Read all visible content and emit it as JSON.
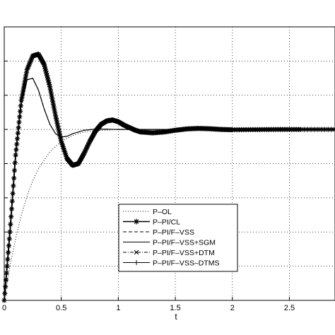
{
  "chart_data": {
    "type": "line",
    "title": "",
    "xlabel": "t",
    "ylabel": "",
    "xlim": [
      0,
      2.9
    ],
    "ylim": [
      0,
      1.6
    ],
    "grid": true,
    "legend_position": "bottom-center",
    "x_ticks": [
      0,
      0.5,
      1,
      1.5,
      2,
      2.5
    ],
    "x_tick_labels": [
      "0",
      "0.5",
      "1",
      "1.5",
      "2",
      "2.5"
    ],
    "y_ticks": [
      0,
      0.2,
      0.4,
      0.6,
      0.8,
      1.0,
      1.2,
      1.4
    ],
    "series": [
      {
        "name": "P–OL",
        "style": "dotted",
        "x": [
          0,
          0.05,
          0.1,
          0.15,
          0.2,
          0.25,
          0.3,
          0.4,
          0.5,
          0.6,
          0.7,
          0.8,
          1.0,
          1.5,
          2.0,
          2.9
        ],
        "y": [
          0,
          0.2,
          0.36,
          0.5,
          0.61,
          0.7,
          0.77,
          0.87,
          0.93,
          0.965,
          0.985,
          0.993,
          0.999,
          1.0,
          1.0,
          1.0
        ]
      },
      {
        "name": "P–PI/CL",
        "style": "solid-star",
        "x": [
          0,
          0.05,
          0.1,
          0.15,
          0.2,
          0.25,
          0.3,
          0.35,
          0.4,
          0.45,
          0.5,
          0.55,
          0.6,
          0.65,
          0.7,
          0.75,
          0.8,
          0.85,
          0.9,
          0.95,
          1.0,
          1.05,
          1.1,
          1.15,
          1.2,
          1.3,
          1.4,
          1.5,
          1.6,
          1.7,
          1.8,
          1.9,
          2.0,
          2.2,
          2.4,
          2.6,
          2.9
        ],
        "y": [
          0,
          0.4,
          0.85,
          1.17,
          1.35,
          1.43,
          1.44,
          1.38,
          1.25,
          1.08,
          0.93,
          0.83,
          0.79,
          0.8,
          0.86,
          0.93,
          0.99,
          1.03,
          1.05,
          1.055,
          1.045,
          1.025,
          1.01,
          0.995,
          0.985,
          0.98,
          0.985,
          0.995,
          1.003,
          1.006,
          1.004,
          1.0,
          0.998,
          0.999,
          1.0,
          1.0,
          1.0
        ]
      },
      {
        "name": "P–PI/F–VSS",
        "style": "dashed",
        "x": [
          0,
          0.05,
          0.1,
          0.15,
          0.2,
          0.25,
          0.3,
          0.35,
          0.4,
          0.45,
          0.5,
          0.55,
          0.6,
          0.7,
          0.8,
          1.0,
          1.5,
          2.0,
          2.9
        ],
        "y": [
          0,
          0.42,
          0.86,
          1.15,
          1.29,
          1.3,
          1.23,
          1.12,
          1.03,
          0.975,
          0.955,
          0.96,
          0.975,
          0.995,
          1.002,
          1.0,
          1.0,
          1.0,
          1.0
        ]
      },
      {
        "name": "P–PI/F–VSS+SGM",
        "style": "solid",
        "x": [
          0,
          0.05,
          0.1,
          0.15,
          0.2,
          0.25,
          0.3,
          0.35,
          0.4,
          0.45,
          0.5,
          0.55,
          0.6,
          0.7,
          0.8,
          1.0,
          1.5,
          2.0,
          2.9
        ],
        "y": [
          0,
          0.42,
          0.86,
          1.15,
          1.29,
          1.3,
          1.23,
          1.12,
          1.03,
          0.975,
          0.955,
          0.96,
          0.975,
          0.995,
          1.002,
          1.0,
          1.0,
          1.0,
          1.0
        ]
      },
      {
        "name": "P–PI/F–VSS+DTM",
        "style": "dashdot-x",
        "x": [
          0,
          0.05,
          0.1,
          0.15,
          0.2,
          0.25,
          0.3,
          0.35,
          0.4,
          0.45,
          0.5,
          0.55,
          0.6,
          0.7,
          0.8,
          1.0,
          1.5,
          2.0,
          2.9
        ],
        "y": [
          0,
          0.42,
          0.86,
          1.15,
          1.29,
          1.3,
          1.23,
          1.12,
          1.03,
          0.975,
          0.955,
          0.96,
          0.975,
          0.995,
          1.002,
          1.0,
          1.0,
          1.0,
          1.0
        ]
      },
      {
        "name": "P–PI/F–VSS–DTMS",
        "style": "solid-plus",
        "x": [
          0,
          0.05,
          0.1,
          0.15,
          0.2,
          0.25,
          0.3,
          0.35,
          0.4,
          0.45,
          0.5,
          0.55,
          0.6,
          0.7,
          0.8,
          1.0,
          1.5,
          2.0,
          2.9
        ],
        "y": [
          0,
          0.42,
          0.86,
          1.15,
          1.29,
          1.3,
          1.23,
          1.12,
          1.03,
          0.975,
          0.955,
          0.96,
          0.975,
          0.995,
          1.002,
          1.0,
          1.0,
          1.0,
          1.0
        ]
      }
    ]
  }
}
